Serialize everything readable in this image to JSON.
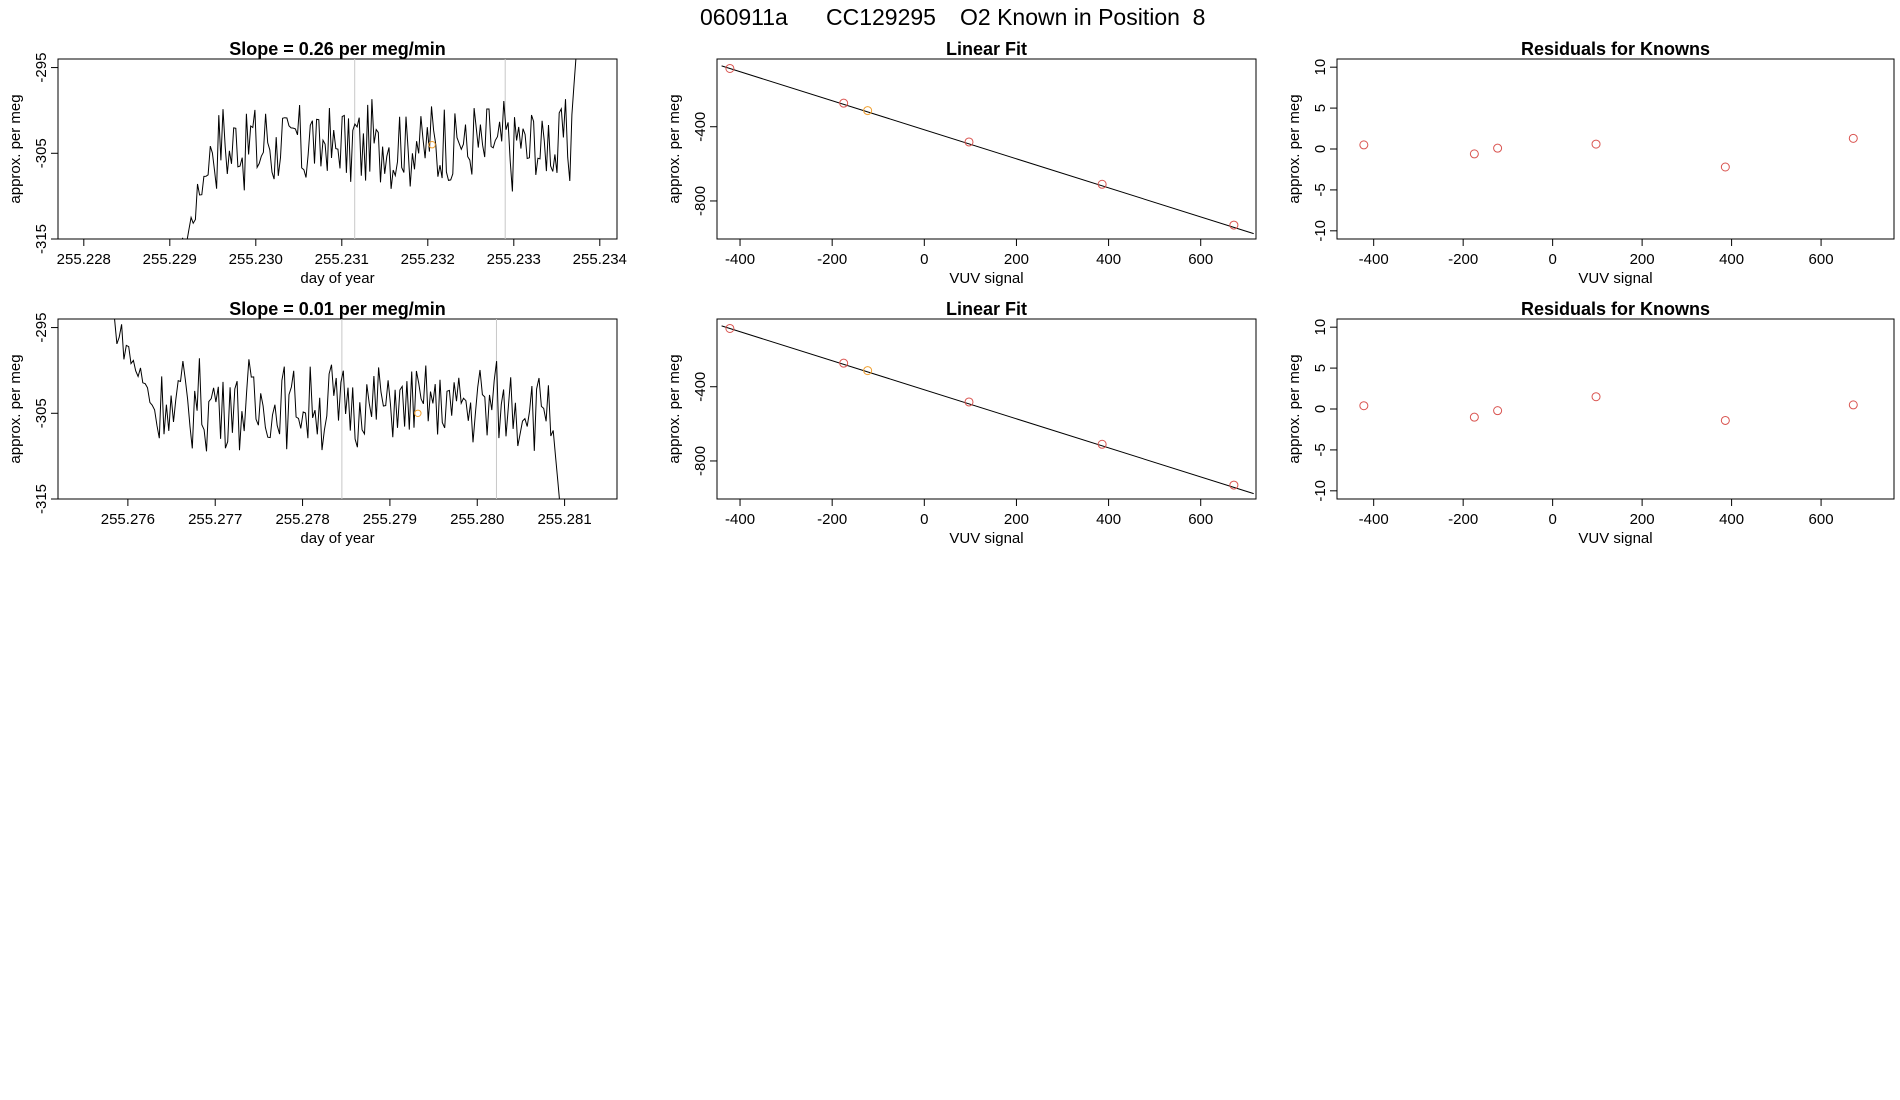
{
  "header": {
    "id": "060911a",
    "cylinder": "CC129295",
    "description": "O2 Known in Position  8"
  },
  "colors": {
    "line": "#000000",
    "point": "#d9534f",
    "highlight": "#f0a030",
    "vline": "#c8c8c8"
  },
  "chart_data": [
    {
      "type": "line",
      "panel": "row1-timeseries",
      "title": "Slope =  0.26  per meg/min",
      "xlabel": "day of year",
      "ylabel": "approx. per meg",
      "xlim": [
        255.2277,
        255.2342
      ],
      "ylim": [
        -315,
        -294
      ],
      "xticks": [
        255.228,
        255.229,
        255.23,
        255.231,
        255.232,
        255.233,
        255.234
      ],
      "xtick_labels": [
        "255.228",
        "255.229",
        "255.230",
        "255.231",
        "255.232",
        "255.233",
        "255.234"
      ],
      "yticks": [
        -315,
        -305,
        -295
      ],
      "ytick_labels": [
        "-315",
        "-305",
        "-295"
      ],
      "vlines": [
        255.23115,
        255.2329
      ],
      "highlight": {
        "x": 255.23205,
        "y": -304
      },
      "series": {
        "x_start": 255.22905,
        "x_end": 255.23375,
        "y_start": -320,
        "y_end": -290,
        "ramp_until": 255.2295
      }
    },
    {
      "type": "scatter",
      "panel": "row1-fit",
      "title": "Linear Fit",
      "xlabel": "VUV signal",
      "ylabel": "approx. per meg",
      "xlim": [
        -450,
        720
      ],
      "ylim": [
        -1005,
        -35
      ],
      "xticks": [
        -400,
        -200,
        0,
        200,
        400,
        600
      ],
      "xtick_labels": [
        "-400",
        "-200",
        "0",
        "200",
        "400",
        "600"
      ],
      "yticks": [
        -800,
        -400
      ],
      "ytick_labels": [
        "-800",
        "-400"
      ],
      "x": [
        -422,
        -175,
        -123,
        97,
        386,
        672
      ],
      "y": [
        -86,
        -273,
        -313,
        -482,
        -710,
        -930
      ],
      "highlight_index": 2,
      "fit_line": {
        "x": [
          -440,
          715
        ],
        "y": [
          -72,
          -976
        ]
      }
    },
    {
      "type": "scatter",
      "panel": "row1-residuals",
      "title": "Residuals for Knowns",
      "xlabel": "VUV signal",
      "ylabel": "approx. per meg",
      "xlim": [
        -482,
        763
      ],
      "ylim": [
        -11,
        11
      ],
      "xticks": [
        -400,
        -200,
        0,
        200,
        400,
        600
      ],
      "xtick_labels": [
        "-400",
        "-200",
        "0",
        "200",
        "400",
        "600"
      ],
      "yticks": [
        -10,
        -5,
        0,
        5,
        10
      ],
      "ytick_labels": [
        "-10",
        "-5",
        "0",
        "5",
        "10"
      ],
      "x": [
        -422,
        -175,
        -123,
        97,
        386,
        672
      ],
      "y": [
        0.5,
        -0.6,
        0.1,
        0.6,
        -2.2,
        1.3
      ]
    },
    {
      "type": "line",
      "panel": "row2-timeseries",
      "title": "Slope =  0.01  per meg/min",
      "xlabel": "day of year",
      "ylabel": "approx. per meg",
      "xlim": [
        255.2752,
        255.2816
      ],
      "ylim": [
        -315,
        -294
      ],
      "xticks": [
        255.276,
        255.277,
        255.278,
        255.279,
        255.28,
        255.281
      ],
      "xtick_labels": [
        "255.276",
        "255.277",
        "255.278",
        "255.279",
        "255.280",
        "255.281"
      ],
      "yticks": [
        -315,
        -305,
        -295
      ],
      "ytick_labels": [
        "-315",
        "-305",
        "-295"
      ],
      "vlines": [
        255.27845,
        255.28022
      ],
      "highlight": {
        "x": 255.27932,
        "y": -305
      },
      "series": {
        "x_start": 255.27582,
        "x_end": 255.28095,
        "y_start": -294,
        "y_end": -316,
        "ramp_until": 255.2763
      }
    },
    {
      "type": "scatter",
      "panel": "row2-fit",
      "title": "Linear Fit",
      "xlabel": "VUV signal",
      "ylabel": "approx. per meg",
      "xlim": [
        -450,
        720
      ],
      "ylim": [
        -1005,
        -35
      ],
      "xticks": [
        -400,
        -200,
        0,
        200,
        400,
        600
      ],
      "xtick_labels": [
        "-400",
        "-200",
        "0",
        "200",
        "400",
        "600"
      ],
      "yticks": [
        -800,
        -400
      ],
      "ytick_labels": [
        "-800",
        "-400"
      ],
      "x": [
        -422,
        -175,
        -123,
        97,
        386,
        672
      ],
      "y": [
        -86,
        -273,
        -313,
        -482,
        -710,
        -930
      ],
      "highlight_index": 2,
      "fit_line": {
        "x": [
          -440,
          715
        ],
        "y": [
          -72,
          -976
        ]
      }
    },
    {
      "type": "scatter",
      "panel": "row2-residuals",
      "title": "Residuals for Knowns",
      "xlabel": "VUV signal",
      "ylabel": "approx. per meg",
      "xlim": [
        -482,
        763
      ],
      "ylim": [
        -11,
        11
      ],
      "xticks": [
        -400,
        -200,
        0,
        200,
        400,
        600
      ],
      "xtick_labels": [
        "-400",
        "-200",
        "0",
        "200",
        "400",
        "600"
      ],
      "yticks": [
        -10,
        -5,
        0,
        5,
        10
      ],
      "ytick_labels": [
        "-10",
        "-5",
        "0",
        "5",
        "10"
      ],
      "x": [
        -422,
        -175,
        -123,
        97,
        386,
        672
      ],
      "y": [
        0.4,
        -1.0,
        -0.2,
        1.5,
        -1.4,
        0.5
      ]
    }
  ]
}
